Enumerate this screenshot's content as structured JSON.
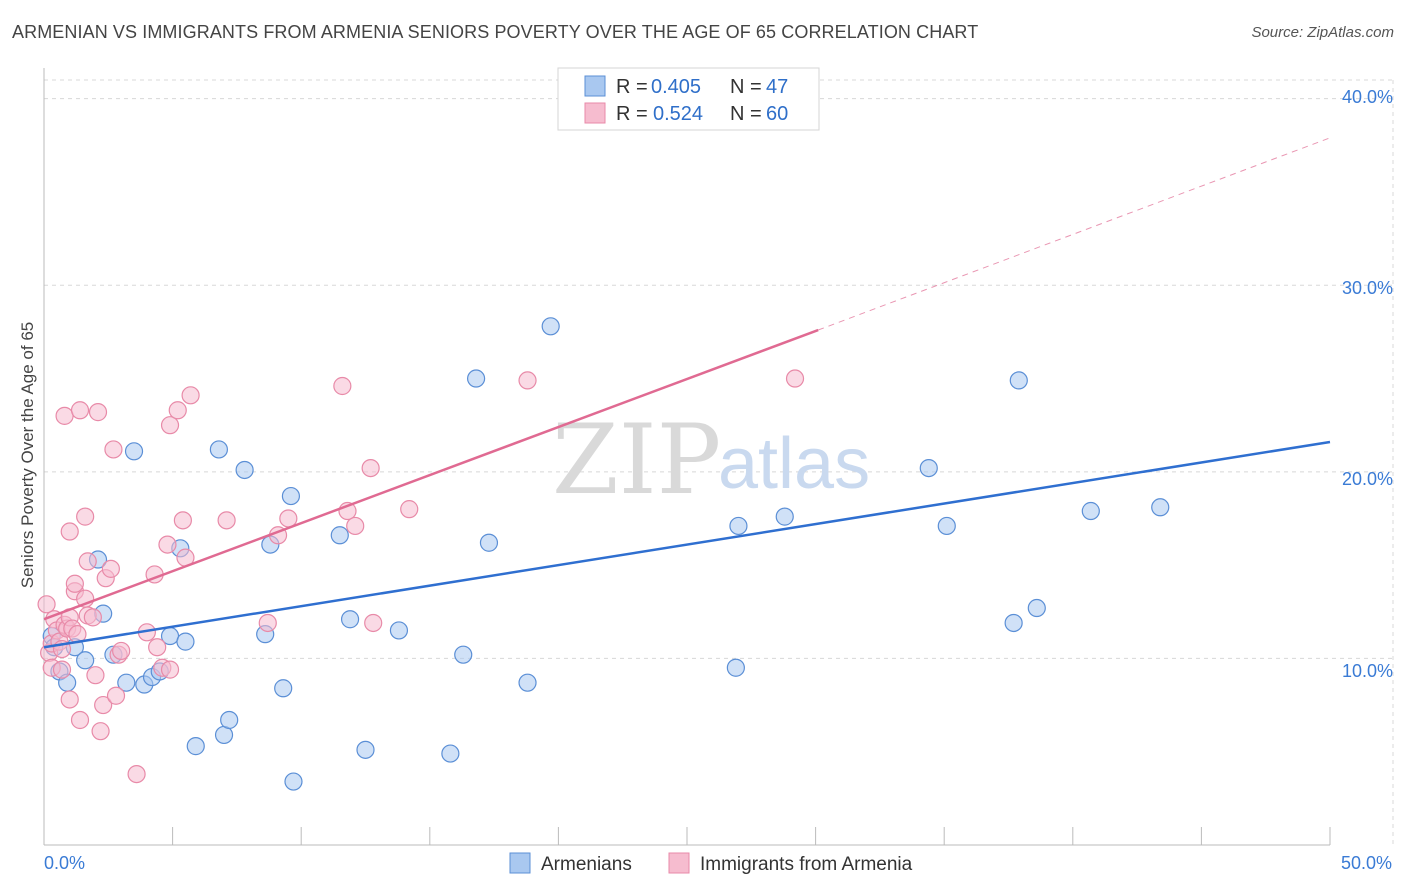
{
  "title": "ARMENIAN VS IMMIGRANTS FROM ARMENIA SENIORS POVERTY OVER THE AGE OF 65 CORRELATION CHART",
  "source": "Source: ZipAtlas.com",
  "watermark": {
    "zip": "ZIP",
    "atlas": "atlas"
  },
  "legend": {
    "r_label": "R =",
    "n_label": "N =",
    "rows": [
      {
        "r": "0.405",
        "n": "47"
      },
      {
        "r": "0.524",
        "n": "60"
      }
    ]
  },
  "bottom_legend": [
    "Armenians",
    "Immigrants from Armenia"
  ],
  "colors": {
    "blue_fill": "#a9c8f0",
    "blue_stroke": "#5b8fd6",
    "blue_line": "#2f6fd0",
    "pink_fill": "#f6bccf",
    "pink_stroke": "#e88aa8",
    "pink_line": "#e06a92",
    "grid": "#d8d8d8",
    "tick_text": "#3a7bd5"
  },
  "chart_data": {
    "type": "scatter",
    "title": "ARMENIAN VS IMMIGRANTS FROM ARMENIA SENIORS POVERTY OVER THE AGE OF 65 CORRELATION CHART",
    "xlabel": "",
    "ylabel": "Seniors Poverty Over the Age of 65",
    "xlim": [
      0,
      50
    ],
    "ylim": [
      0,
      41
    ],
    "x_tick_labels": [
      "0.0%",
      "50.0%"
    ],
    "y_ticks": [
      10,
      20,
      30,
      40
    ],
    "y_tick_labels": [
      "10.0%",
      "20.0%",
      "30.0%",
      "40.0%"
    ],
    "grid": true,
    "legend_position": "top-center",
    "series": [
      {
        "name": "Armenians",
        "r": 0.405,
        "n": 47,
        "trend": {
          "x0": 0,
          "y0": 10.6,
          "x1": 50,
          "y1": 21.6,
          "dashed_to": null
        },
        "points": [
          [
            0.3,
            11.2
          ],
          [
            0.4,
            10.6
          ],
          [
            0.6,
            9.3
          ],
          [
            0.9,
            8.7
          ],
          [
            1.2,
            10.6
          ],
          [
            1.6,
            9.9
          ],
          [
            2.1,
            15.3
          ],
          [
            2.3,
            12.4
          ],
          [
            2.7,
            10.2
          ],
          [
            3.2,
            8.7
          ],
          [
            3.5,
            21.1
          ],
          [
            3.9,
            8.6
          ],
          [
            4.2,
            9.0
          ],
          [
            4.5,
            9.3
          ],
          [
            4.9,
            11.2
          ],
          [
            5.3,
            15.9
          ],
          [
            5.5,
            10.9
          ],
          [
            5.9,
            5.3
          ],
          [
            6.8,
            21.2
          ],
          [
            7.0,
            5.9
          ],
          [
            7.2,
            6.7
          ],
          [
            7.8,
            20.1
          ],
          [
            8.6,
            11.3
          ],
          [
            8.8,
            16.1
          ],
          [
            9.3,
            8.4
          ],
          [
            9.6,
            18.7
          ],
          [
            9.7,
            3.4
          ],
          [
            11.5,
            16.6
          ],
          [
            11.9,
            12.1
          ],
          [
            12.5,
            5.1
          ],
          [
            13.8,
            11.5
          ],
          [
            15.8,
            4.9
          ],
          [
            16.3,
            10.2
          ],
          [
            16.8,
            25.0
          ],
          [
            17.3,
            16.2
          ],
          [
            18.8,
            8.7
          ],
          [
            19.7,
            27.8
          ],
          [
            26.9,
            9.5
          ],
          [
            27.0,
            17.1
          ],
          [
            28.8,
            17.6
          ],
          [
            34.4,
            20.2
          ],
          [
            35.1,
            17.1
          ],
          [
            37.7,
            11.9
          ],
          [
            37.9,
            24.9
          ],
          [
            38.6,
            12.7
          ],
          [
            40.7,
            17.9
          ],
          [
            43.4,
            18.1
          ]
        ]
      },
      {
        "name": "Immigrants from Armenia",
        "r": 0.524,
        "n": 60,
        "trend": {
          "x0": 0,
          "y0": 12.1,
          "x1": 30.1,
          "y1": 27.6,
          "dashed_to": {
            "x": 50,
            "y": 37.9
          }
        },
        "points": [
          [
            0.1,
            12.9
          ],
          [
            0.2,
            10.3
          ],
          [
            0.3,
            10.8
          ],
          [
            0.3,
            9.5
          ],
          [
            0.4,
            12.1
          ],
          [
            0.5,
            11.5
          ],
          [
            0.6,
            10.9
          ],
          [
            0.7,
            10.5
          ],
          [
            0.7,
            9.4
          ],
          [
            0.8,
            11.8
          ],
          [
            0.8,
            23.0
          ],
          [
            0.9,
            11.6
          ],
          [
            1.0,
            12.2
          ],
          [
            1.0,
            7.8
          ],
          [
            1.0,
            16.8
          ],
          [
            1.1,
            11.6
          ],
          [
            1.2,
            13.6
          ],
          [
            1.2,
            14.0
          ],
          [
            1.3,
            11.3
          ],
          [
            1.4,
            6.7
          ],
          [
            1.4,
            23.3
          ],
          [
            1.6,
            13.2
          ],
          [
            1.6,
            17.6
          ],
          [
            1.7,
            12.3
          ],
          [
            1.7,
            15.2
          ],
          [
            1.9,
            12.2
          ],
          [
            2.0,
            9.1
          ],
          [
            2.1,
            23.2
          ],
          [
            2.2,
            6.1
          ],
          [
            2.3,
            7.5
          ],
          [
            2.4,
            14.3
          ],
          [
            2.6,
            14.8
          ],
          [
            2.7,
            21.2
          ],
          [
            2.8,
            8.0
          ],
          [
            2.9,
            10.2
          ],
          [
            3.0,
            10.4
          ],
          [
            3.6,
            3.8
          ],
          [
            4.0,
            11.4
          ],
          [
            4.3,
            14.5
          ],
          [
            4.4,
            10.6
          ],
          [
            4.6,
            9.5
          ],
          [
            4.8,
            16.1
          ],
          [
            4.9,
            22.5
          ],
          [
            5.2,
            23.3
          ],
          [
            5.4,
            17.4
          ],
          [
            5.5,
            15.4
          ],
          [
            5.7,
            24.1
          ],
          [
            7.1,
            17.4
          ],
          [
            8.7,
            11.9
          ],
          [
            9.1,
            16.6
          ],
          [
            9.5,
            17.5
          ],
          [
            11.6,
            24.6
          ],
          [
            11.8,
            17.9
          ],
          [
            12.1,
            17.1
          ],
          [
            12.7,
            20.2
          ],
          [
            12.8,
            11.9
          ],
          [
            14.2,
            18.0
          ],
          [
            18.8,
            24.9
          ],
          [
            29.2,
            25.0
          ],
          [
            4.9,
            9.4
          ]
        ]
      }
    ]
  }
}
